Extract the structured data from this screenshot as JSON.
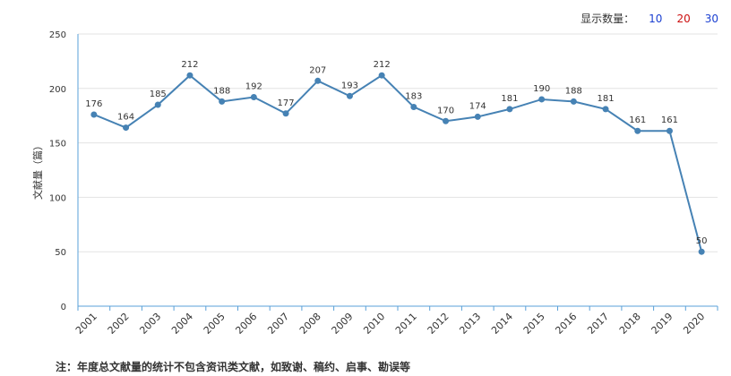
{
  "controls": {
    "label": "显示数量：",
    "options": [
      "10",
      "20",
      "30"
    ]
  },
  "chart_data": {
    "type": "line",
    "title": "",
    "xlabel": "",
    "ylabel": "文献量（篇）",
    "ylim": [
      0,
      250
    ],
    "yticks": [
      0,
      50,
      100,
      150,
      200,
      250
    ],
    "grid": true,
    "categories": [
      "2001",
      "2002",
      "2003",
      "2004",
      "2005",
      "2006",
      "2007",
      "2008",
      "2009",
      "2010",
      "2011",
      "2012",
      "2013",
      "2014",
      "2015",
      "2016",
      "2017",
      "2018",
      "2019",
      "2020"
    ],
    "series": [
      {
        "values": [
          176,
          164,
          185,
          212,
          188,
          192,
          177,
          207,
          193,
          212,
          183,
          170,
          174,
          181,
          190,
          188,
          181,
          161,
          161,
          50
        ]
      }
    ],
    "color": "#4682b4"
  },
  "note": "注：年度总文献量的统计不包含资讯类文献，如致谢、稿约、启事、勘误等"
}
